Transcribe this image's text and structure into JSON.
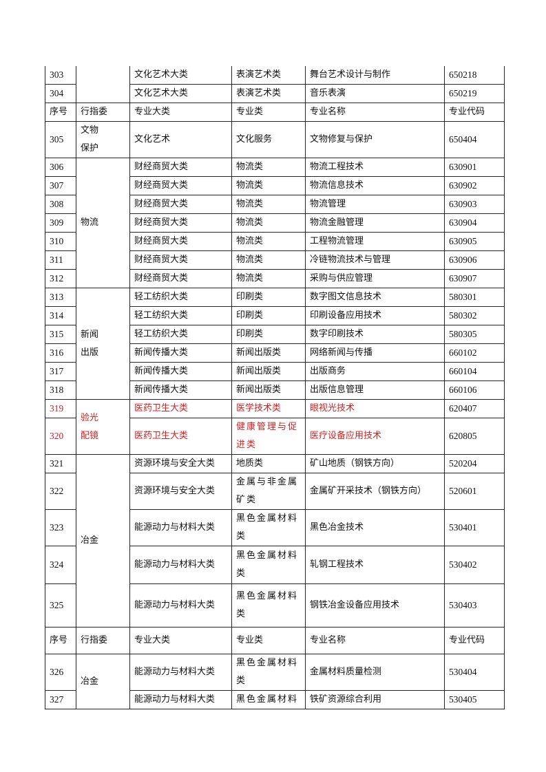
{
  "header": [
    "序号",
    "行指委",
    "专业大类",
    "专业类",
    "专业名称",
    "专业代码"
  ],
  "rows": [
    {
      "type": "row",
      "no": "303",
      "major_cat": "文化艺术大类",
      "cat": "表演艺术类",
      "name": "舞台艺术设计与制作",
      "code": "650218",
      "group": "",
      "group_span": 2
    },
    {
      "type": "row",
      "no": "304",
      "major_cat": "文化艺术大类",
      "cat": "表演艺术类",
      "name": "音乐表演",
      "code": "650219"
    },
    {
      "type": "header"
    },
    {
      "type": "row",
      "no": "305",
      "major_cat": "文化艺术",
      "cat": "文化服务",
      "name": "文物修复与保护",
      "code": "650404",
      "group": "文物\n保护",
      "group_span": 1
    },
    {
      "type": "row",
      "no": "306",
      "major_cat": "财经商贸大类",
      "cat": "物流类",
      "name": "物流工程技术",
      "code": "630901",
      "group": "物流",
      "group_span": 7
    },
    {
      "type": "row",
      "no": "307",
      "major_cat": "财经商贸大类",
      "cat": "物流类",
      "name": "物流信息技术",
      "code": "630902"
    },
    {
      "type": "row",
      "no": "308",
      "major_cat": "财经商贸大类",
      "cat": "物流类",
      "name": "物流管理",
      "code": "630903"
    },
    {
      "type": "row",
      "no": "309",
      "major_cat": "财经商贸大类",
      "cat": "物流类",
      "name": "物流金融管理",
      "code": "630904"
    },
    {
      "type": "row",
      "no": "310",
      "major_cat": "财经商贸大类",
      "cat": "物流类",
      "name": "工程物流管理",
      "code": "630905"
    },
    {
      "type": "row",
      "no": "311",
      "major_cat": "财经商贸大类",
      "cat": "物流类",
      "name": "冷链物流技术与管理",
      "code": "630906"
    },
    {
      "type": "row",
      "no": "312",
      "major_cat": "财经商贸大类",
      "cat": "物流类",
      "name": "采购与供应管理",
      "code": "630907"
    },
    {
      "type": "row",
      "no": "313",
      "major_cat": "轻工纺织大类",
      "cat": "印刷类",
      "name": "数字图文信息技术",
      "code": "580301",
      "group": "新闻\n出版",
      "group_span": 6
    },
    {
      "type": "row",
      "no": "314",
      "major_cat": "轻工纺织大类",
      "cat": "印刷类",
      "name": "印刷设备应用技术",
      "code": "580302"
    },
    {
      "type": "row",
      "no": "315",
      "major_cat": "轻工纺织大类",
      "cat": "印刷类",
      "name": "数字印刷技术",
      "code": "580305"
    },
    {
      "type": "row",
      "no": "316",
      "major_cat": "新闻传播大类",
      "cat": "新闻出版类",
      "name": "网络新闻与传播",
      "code": "660102"
    },
    {
      "type": "row",
      "no": "317",
      "major_cat": "新闻传播大类",
      "cat": "新闻出版类",
      "name": "出版商务",
      "code": "660104"
    },
    {
      "type": "row",
      "no": "318",
      "major_cat": "新闻传播大类",
      "cat": "新闻出版类",
      "name": "出版信息管理",
      "code": "660106"
    },
    {
      "type": "row",
      "no": "319",
      "major_cat": "医药卫生大类",
      "cat": "医学技术类",
      "name": "眼视光技术",
      "code": "620407",
      "group": "验光\n配镜",
      "group_span": 2,
      "highlight": true
    },
    {
      "type": "row",
      "no": "320",
      "major_cat": "医药卫生大类",
      "cat": "健康管理与促进类",
      "name": "医疗设备应用技术",
      "code": "620805",
      "highlight": true
    },
    {
      "type": "row",
      "no": "321",
      "major_cat": "资源环境与安全大类",
      "cat": "地质类",
      "name": "矿山地质（钢铁方向）",
      "code": "520204",
      "group": "冶金",
      "group_span": 5
    },
    {
      "type": "row",
      "no": "322",
      "major_cat": "资源环境与安全大类",
      "cat": "金属与非金属矿类",
      "name": "金属矿开采技术（钢铁方向）",
      "code": "520601"
    },
    {
      "type": "row",
      "no": "323",
      "major_cat": "能源动力与材料大类",
      "cat": "黑色金属材料类",
      "name": "黑色冶金技术",
      "code": "530401"
    },
    {
      "type": "row",
      "no": "324",
      "major_cat": "能源动力与材料大类",
      "cat": "黑色金属材料类",
      "name": "轧钢工程技术",
      "code": "530402"
    },
    {
      "type": "row",
      "no": "325",
      "major_cat": "能源动力与材料大类",
      "cat": "黑色金属材料类",
      "name": "钢铁冶金设备应用技术",
      "code": "530403"
    },
    {
      "type": "header"
    },
    {
      "type": "row",
      "no": "326",
      "major_cat": "能源动力与材料大类",
      "cat": "黑色金属材料类",
      "name": "金属材料质量检测",
      "code": "530404",
      "group": "冶金",
      "group_span": 2
    },
    {
      "type": "row",
      "no": "327",
      "major_cat": "能源动力与材料大类",
      "cat": "黑色金属材料",
      "name": "铁矿资源综合利用",
      "code": "530405"
    }
  ],
  "colors": {
    "text": "#111111",
    "highlight": "#d42020",
    "border": "#222222"
  }
}
